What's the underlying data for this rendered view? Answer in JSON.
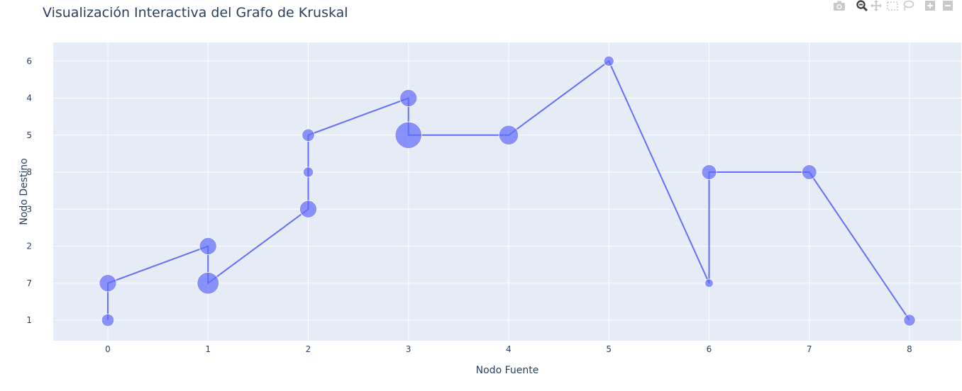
{
  "title": "Visualización Interactiva del Grafo de Kruskal",
  "modebar": {
    "icons": [
      "camera-icon",
      "zoom-icon",
      "pan-icon",
      "box-select-icon",
      "lasso-select-icon",
      "zoom-in-icon",
      "zoom-out-icon"
    ]
  },
  "colors": {
    "line": "#636efa",
    "plot_bg": "#e5ecf6",
    "grid": "#ffffff",
    "text": "#2a3f5f",
    "modebar_icon": "#c9c9c9",
    "modebar_active": "#444444"
  },
  "chart_data": {
    "type": "scatter",
    "mode": "lines+markers",
    "title": "Visualización Interactiva del Grafo de Kruskal",
    "xlabel": "Nodo Fuente",
    "ylabel": "Nodo Destino",
    "x_ticks": [
      0,
      1,
      2,
      3,
      4,
      5,
      6,
      7,
      8
    ],
    "y_categories": [
      "1",
      "7",
      "2",
      "3",
      "8",
      "5",
      "4",
      "6"
    ],
    "grid": true,
    "legend": "none",
    "points": [
      {
        "x": 0,
        "y": "1",
        "size": 1
      },
      {
        "x": 0,
        "y": "7",
        "size": 2
      },
      {
        "x": 1,
        "y": "2",
        "size": 2
      },
      {
        "x": 1,
        "y": "7",
        "size": 3
      },
      {
        "x": 2,
        "y": "3",
        "size": 2
      },
      {
        "x": 2,
        "y": "8",
        "size": 0.5
      },
      {
        "x": 2,
        "y": "5",
        "size": 1
      },
      {
        "x": 3,
        "y": "4",
        "size": 2
      },
      {
        "x": 3,
        "y": "5",
        "size": 4
      },
      {
        "x": 4,
        "y": "5",
        "size": 2.5
      },
      {
        "x": 5,
        "y": "6",
        "size": 0.5
      },
      {
        "x": 6,
        "y": "7",
        "size": 0.1
      },
      {
        "x": 6,
        "y": "8",
        "size": 1.5
      },
      {
        "x": 7,
        "y": "8",
        "size": 1.5
      },
      {
        "x": 8,
        "y": "1",
        "size": 0.8
      }
    ]
  }
}
